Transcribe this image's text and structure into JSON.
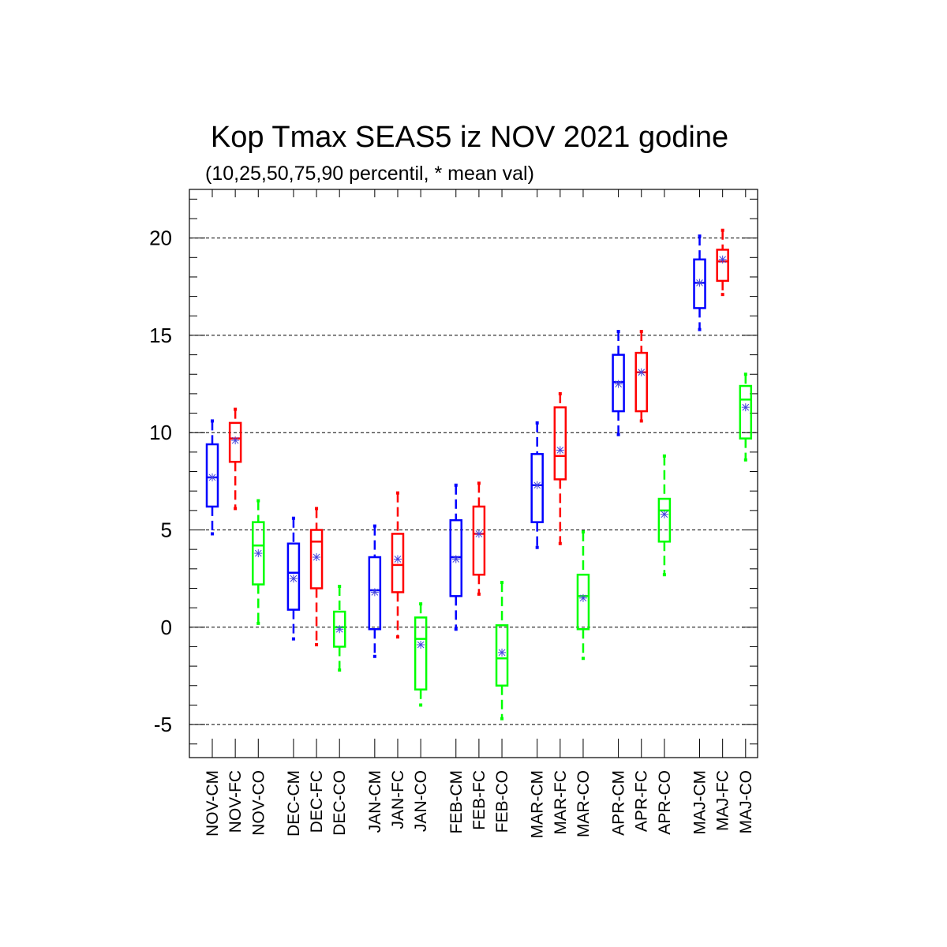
{
  "chart_data": {
    "type": "boxplot",
    "title": "Kop Tmax SEAS5 iz NOV 2021 godine",
    "subtitle": "(10,25,50,75,90 percentil, * mean val)",
    "ylim": [
      -6.7,
      22.5
    ],
    "yticks": [
      -5,
      0,
      5,
      10,
      15,
      20
    ],
    "grid": "horizontal dashed at major ticks",
    "colors": {
      "CM": "#0000ff",
      "FC": "#ff0000",
      "CO": "#00ff00",
      "mean_marker": "#4444dd"
    },
    "boxes": [
      {
        "label": "NOV-CM",
        "kind": "CM",
        "p10": 4.8,
        "p25": 6.2,
        "p50": 7.7,
        "p75": 9.4,
        "p90": 10.6,
        "mean": 7.7
      },
      {
        "label": "NOV-FC",
        "kind": "FC",
        "p10": 6.1,
        "p25": 8.5,
        "p50": 9.7,
        "p75": 10.5,
        "p90": 11.2,
        "mean": 9.6
      },
      {
        "label": "NOV-CO",
        "kind": "CO",
        "p10": 0.2,
        "p25": 2.2,
        "p50": 4.2,
        "p75": 5.4,
        "p90": 6.5,
        "mean": 3.8
      },
      {
        "label": "DEC-CM",
        "kind": "CM",
        "p10": -0.6,
        "p25": 0.9,
        "p50": 2.8,
        "p75": 4.3,
        "p90": 5.6,
        "mean": 2.5
      },
      {
        "label": "DEC-FC",
        "kind": "FC",
        "p10": -0.9,
        "p25": 2.0,
        "p50": 4.4,
        "p75": 5.0,
        "p90": 6.1,
        "mean": 3.6
      },
      {
        "label": "DEC-CO",
        "kind": "CO",
        "p10": -2.2,
        "p25": -1.0,
        "p50": 0.0,
        "p75": 0.8,
        "p90": 2.1,
        "mean": -0.1
      },
      {
        "label": "JAN-CM",
        "kind": "CM",
        "p10": -1.5,
        "p25": -0.1,
        "p50": 1.9,
        "p75": 3.6,
        "p90": 5.2,
        "mean": 1.8
      },
      {
        "label": "JAN-FC",
        "kind": "FC",
        "p10": -0.5,
        "p25": 1.8,
        "p50": 3.2,
        "p75": 4.8,
        "p90": 6.9,
        "mean": 3.5
      },
      {
        "label": "JAN-CO",
        "kind": "CO",
        "p10": -4.0,
        "p25": -3.2,
        "p50": -0.6,
        "p75": 0.5,
        "p90": 1.2,
        "mean": -0.9
      },
      {
        "label": "FEB-CM",
        "kind": "CM",
        "p10": -0.1,
        "p25": 1.6,
        "p50": 3.6,
        "p75": 5.5,
        "p90": 7.3,
        "mean": 3.5
      },
      {
        "label": "FEB-FC",
        "kind": "FC",
        "p10": 1.7,
        "p25": 2.7,
        "p50": 4.8,
        "p75": 6.2,
        "p90": 7.4,
        "mean": 4.8
      },
      {
        "label": "FEB-CO",
        "kind": "CO",
        "p10": -4.7,
        "p25": -3.0,
        "p50": -1.6,
        "p75": 0.1,
        "p90": 2.3,
        "mean": -1.3
      },
      {
        "label": "MAR-CM",
        "kind": "CM",
        "p10": 4.1,
        "p25": 5.4,
        "p50": 7.3,
        "p75": 8.9,
        "p90": 10.5,
        "mean": 7.3
      },
      {
        "label": "MAR-FC",
        "kind": "FC",
        "p10": 4.3,
        "p25": 7.6,
        "p50": 8.8,
        "p75": 11.3,
        "p90": 12.0,
        "mean": 9.1
      },
      {
        "label": "MAR-CO",
        "kind": "CO",
        "p10": -1.6,
        "p25": -0.1,
        "p50": 1.6,
        "p75": 2.7,
        "p90": 4.9,
        "mean": 1.5
      },
      {
        "label": "APR-CM",
        "kind": "CM",
        "p10": 9.9,
        "p25": 11.1,
        "p50": 12.6,
        "p75": 14.0,
        "p90": 15.2,
        "mean": 12.5
      },
      {
        "label": "APR-FC",
        "kind": "FC",
        "p10": 10.6,
        "p25": 11.1,
        "p50": 13.1,
        "p75": 14.1,
        "p90": 15.2,
        "mean": 13.1
      },
      {
        "label": "APR-CO",
        "kind": "CO",
        "p10": 2.7,
        "p25": 4.4,
        "p50": 6.0,
        "p75": 6.6,
        "p90": 8.8,
        "mean": 5.8
      },
      {
        "label": "MAJ-CM",
        "kind": "CM",
        "p10": 15.3,
        "p25": 16.4,
        "p50": 17.7,
        "p75": 18.9,
        "p90": 20.1,
        "mean": 17.7
      },
      {
        "label": "MAJ-FC",
        "kind": "FC",
        "p10": 17.1,
        "p25": 17.8,
        "p50": 18.8,
        "p75": 19.4,
        "p90": 20.4,
        "mean": 18.9
      },
      {
        "label": "MAJ-CO",
        "kind": "CO",
        "p10": 8.6,
        "p25": 9.7,
        "p50": 11.7,
        "p75": 12.4,
        "p90": 13.0,
        "mean": 11.3
      }
    ]
  }
}
